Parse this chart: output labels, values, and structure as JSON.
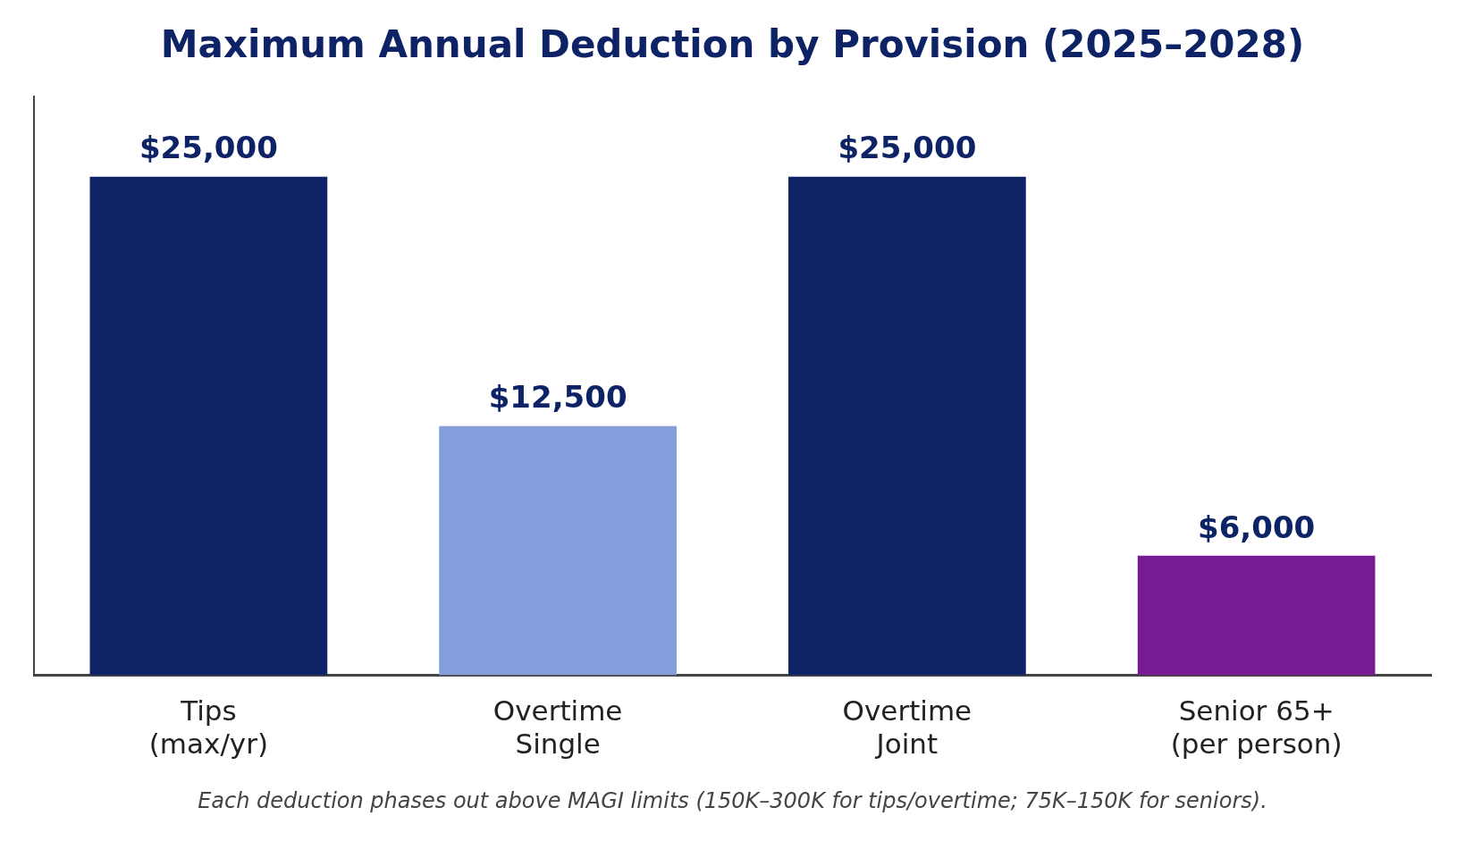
{
  "chart_data": {
    "type": "bar",
    "title": "Maximum Annual Deduction by Provision (2025–2028)",
    "categories": [
      "Tips\n(max/yr)",
      "Overtime\nSingle",
      "Overtime\nJoint",
      "Senior 65+\n(per person)"
    ],
    "values": [
      25000,
      12500,
      25000,
      6000
    ],
    "colors": [
      "#0d2366",
      "#829fdc",
      "#0d2366",
      "#781a94"
    ],
    "value_labels": [
      "$25,000",
      "$12,500",
      "$25,000",
      "$6,000"
    ],
    "ylim": [
      0,
      29000
    ],
    "tick_labels": "x",
    "grid": false,
    "legend": false,
    "annotations": [
      "Each deduction phases out above MAGI limits (150K–300K for tips/overtime; 75K–150K for seniors)."
    ]
  }
}
